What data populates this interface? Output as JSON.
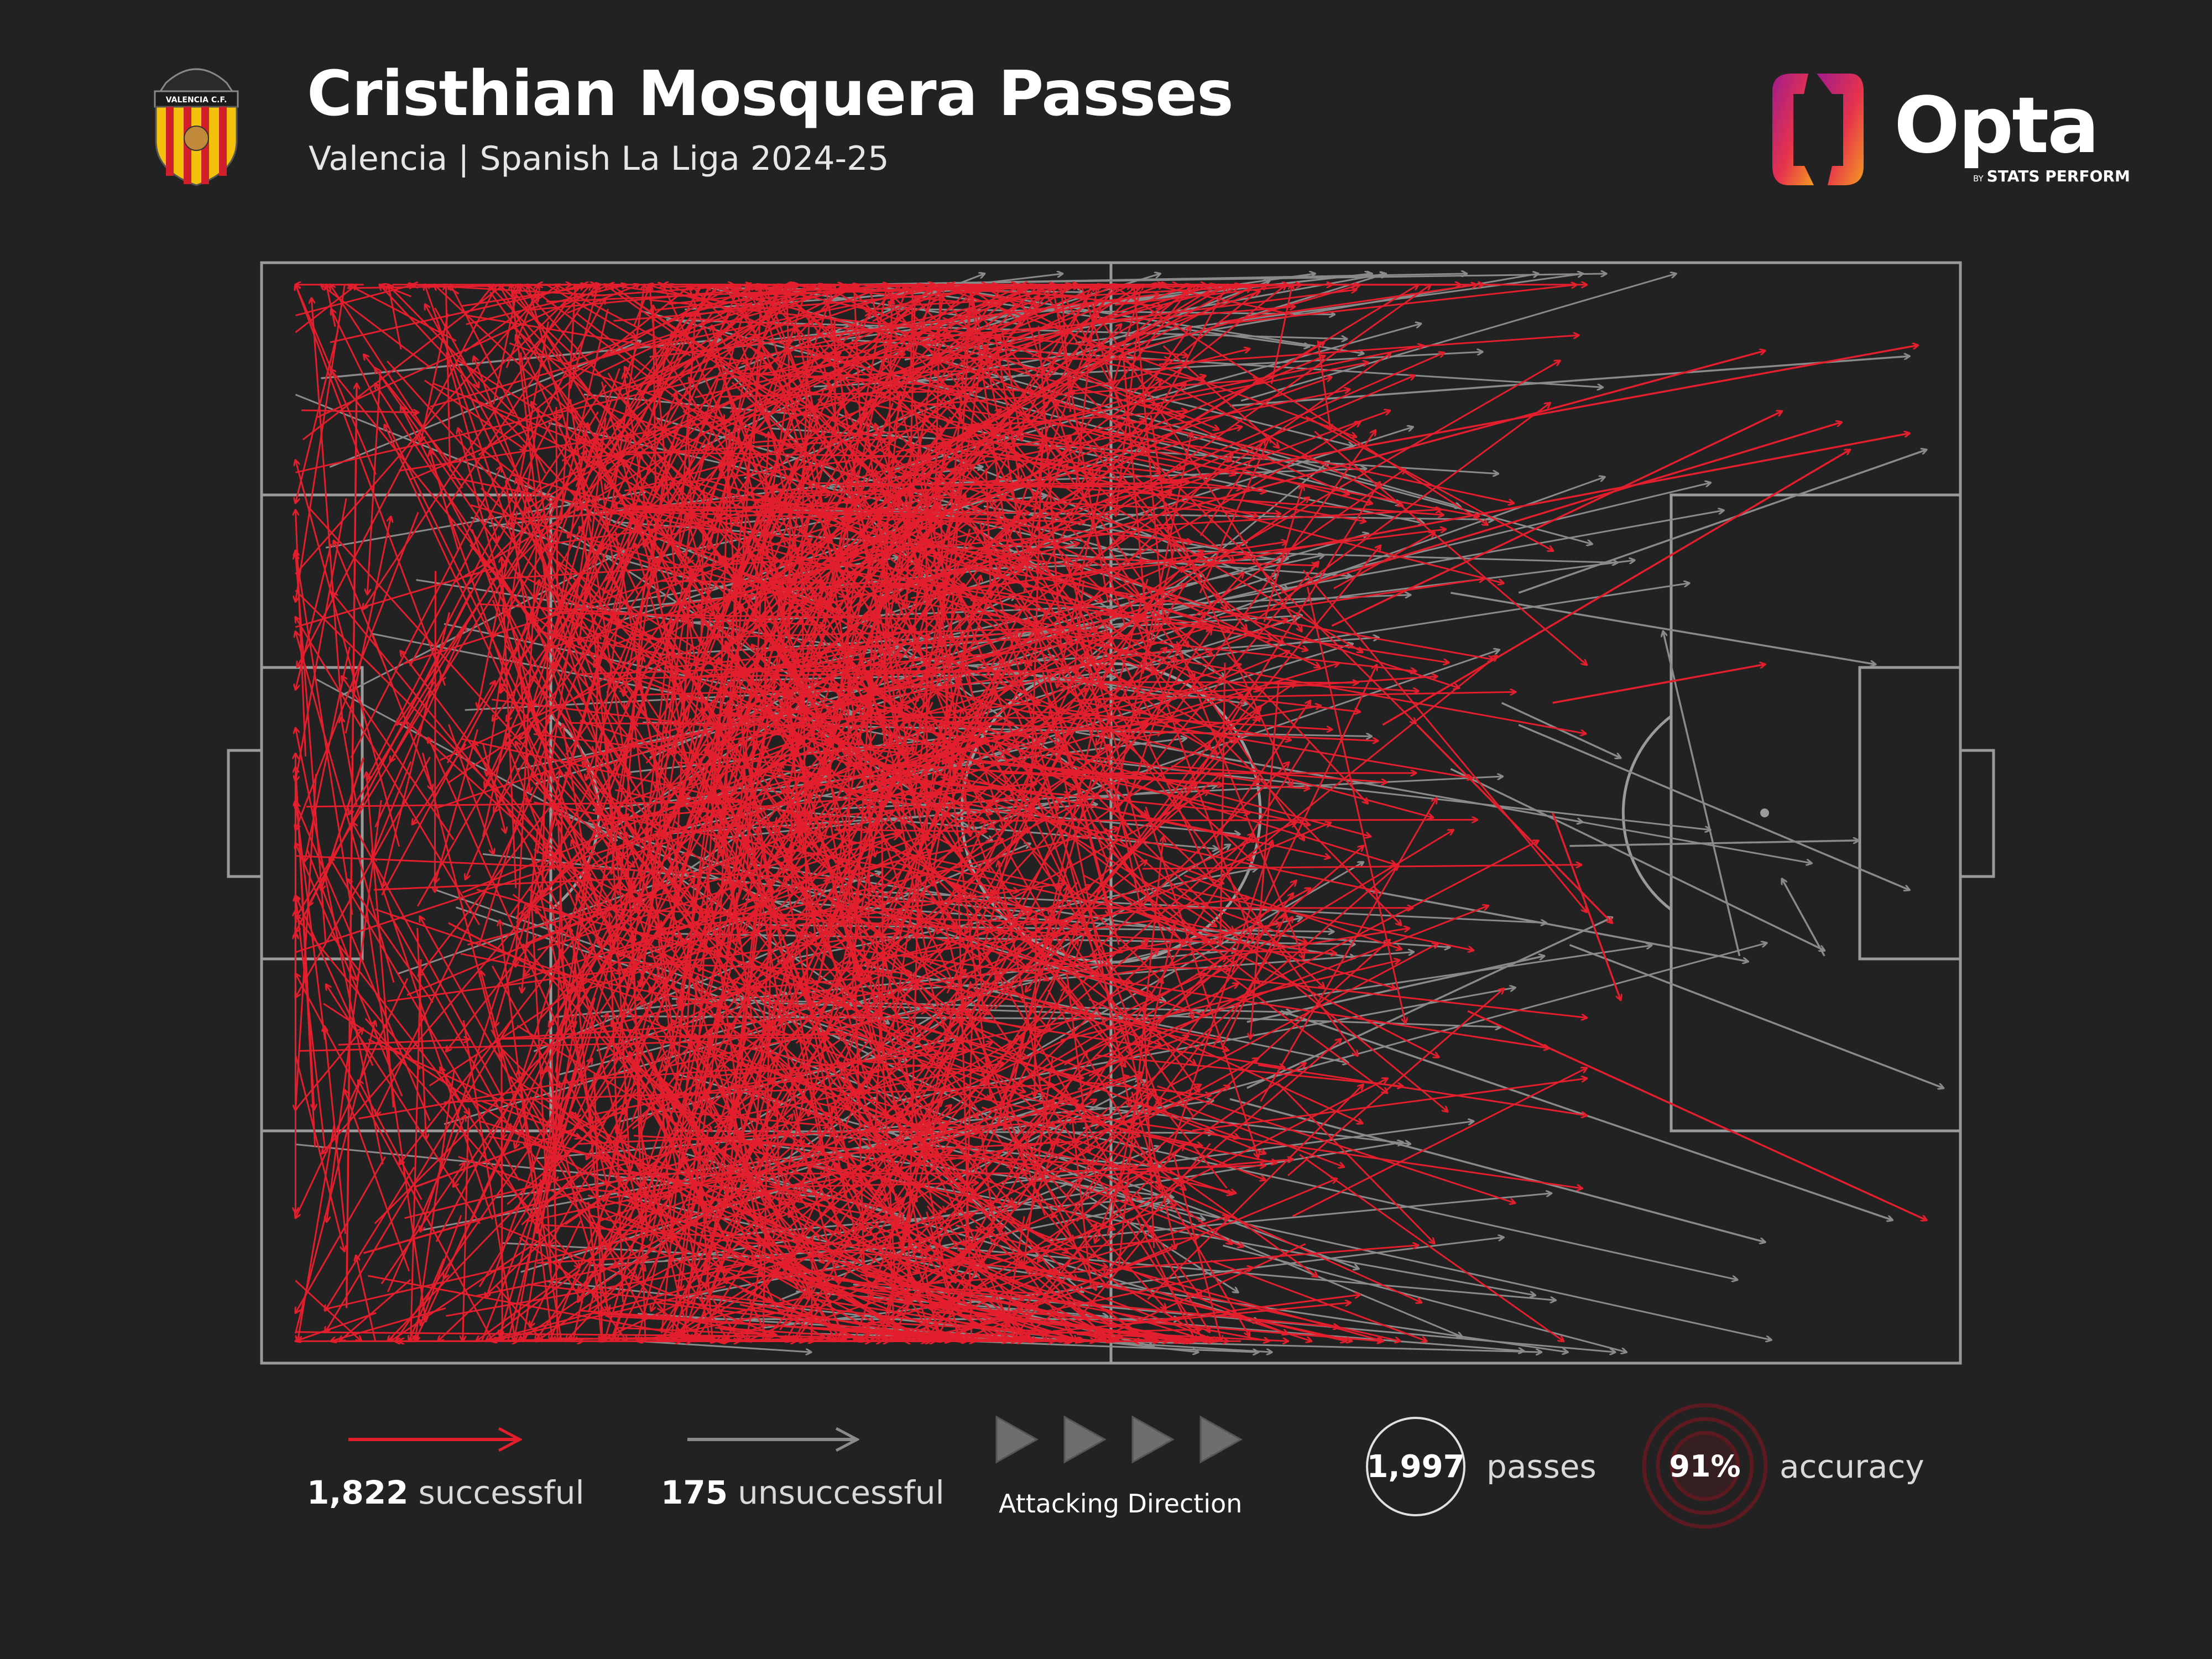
{
  "header": {
    "title": "Cristhian Mosquera Passes",
    "subtitle": "Valencia | Spanish La Liga 2024-25",
    "club_badge_text": "VALENCIA C.F.",
    "brand_name": "Opta",
    "brand_by": "BY",
    "brand_sub": "STATS PERFORM"
  },
  "legend": {
    "successful_count": "1,822",
    "successful_label": "successful",
    "unsuccessful_count": "175",
    "unsuccessful_label": "unsuccessful",
    "direction_label": "Attacking Direction"
  },
  "stats": {
    "passes_value": "1,997",
    "passes_label": "passes",
    "accuracy_value": "91%",
    "accuracy_label": "accuracy",
    "accuracy_fraction": 0.91
  },
  "colors": {
    "background": "#222222",
    "successful": "#e31e2d",
    "unsuccessful": "#8a8a8a",
    "pitch_lines": "#9a9a9a"
  },
  "chart_data": {
    "type": "scatter",
    "description_units": "pitch coordinates 0-100 (x = length toward attacking goal, y = width from top)",
    "series": [
      {
        "name": "successful",
        "count": 1822,
        "sample_passes": [
          {
            "x": [
              5,
              5.6
            ],
            "y": [
              95,
              11
            ]
          },
          {
            "x": [
              36,
              88.5
            ],
            "y": [
              30,
              8
            ]
          },
          {
            "x": [
              46,
              97.5
            ],
            "y": [
              22,
              7.5
            ]
          },
          {
            "x": [
              54,
              97
            ],
            "y": [
              28,
              15.5
            ]
          },
          {
            "x": [
              60,
              93
            ],
            "y": [
              30,
              14.5
            ]
          },
          {
            "x": [
              63,
              89.5
            ],
            "y": [
              33,
              13.5
            ]
          },
          {
            "x": [
              66,
              93.5
            ],
            "y": [
              42,
              17
            ]
          },
          {
            "x": [
              76,
              88.5
            ],
            "y": [
              40,
              36.5
            ]
          },
          {
            "x": [
              68,
              79.5
            ],
            "y": [
              42,
              60
            ]
          },
          {
            "x": [
              71,
              98
            ],
            "y": [
              68,
              87
            ]
          },
          {
            "x": [
              6,
              31
            ],
            "y": [
              90,
              79
            ]
          },
          {
            "x": [
              9,
              21.5
            ],
            "y": [
              84,
              77
            ]
          },
          {
            "x": [
              11,
              18.5
            ],
            "y": [
              60,
              66
            ]
          },
          {
            "x": [
              6,
              3.5
            ],
            "y": [
              45,
              57
            ]
          },
          {
            "x": [
              76,
              80
            ],
            "y": [
              50,
              67
            ]
          }
        ]
      },
      {
        "name": "unsuccessful",
        "count": 175,
        "sample_passes": [
          {
            "x": [
              3.5,
              27
            ],
            "y": [
              10.5,
              7
            ]
          },
          {
            "x": [
              57,
              97
            ],
            "y": [
              13,
              8.5
            ]
          },
          {
            "x": [
              70,
              95
            ],
            "y": [
              30,
              36.5
            ]
          },
          {
            "x": [
              73,
              80
            ],
            "y": [
              40,
              45
            ]
          },
          {
            "x": [
              57,
              88.5
            ],
            "y": [
              76,
              89
            ]
          },
          {
            "x": [
              77,
              99
            ],
            "y": [
              62,
              75
            ]
          },
          {
            "x": [
              77,
              94
            ],
            "y": [
              53,
              52.5
            ]
          },
          {
            "x": [
              58,
              75.5
            ],
            "y": [
              69,
              63
            ]
          },
          {
            "x": [
              58,
              79.5
            ],
            "y": [
              75,
              59.5
            ]
          },
          {
            "x": [
              41,
              52.5
            ],
            "y": [
              94,
              98.5
            ]
          },
          {
            "x": [
              25,
              54
            ],
            "y": [
              96,
              96
            ]
          },
          {
            "x": [
              60,
              96
            ],
            "y": [
              68,
              87
            ]
          },
          {
            "x": [
              65,
              87.5
            ],
            "y": [
              57,
              63.5
            ]
          },
          {
            "x": [
              70,
              92
            ],
            "y": [
              46,
              62.5
            ]
          },
          {
            "x": [
              74,
              97
            ],
            "y": [
              42,
              57
            ]
          },
          {
            "x": [
              87,
              82.5
            ],
            "y": [
              63,
              33.5
            ]
          },
          {
            "x": [
              92,
              89.5
            ],
            "y": [
              63,
              56
            ]
          },
          {
            "x": [
              74,
              98
            ],
            "y": [
              30,
              17
            ]
          }
        ]
      }
    ]
  }
}
